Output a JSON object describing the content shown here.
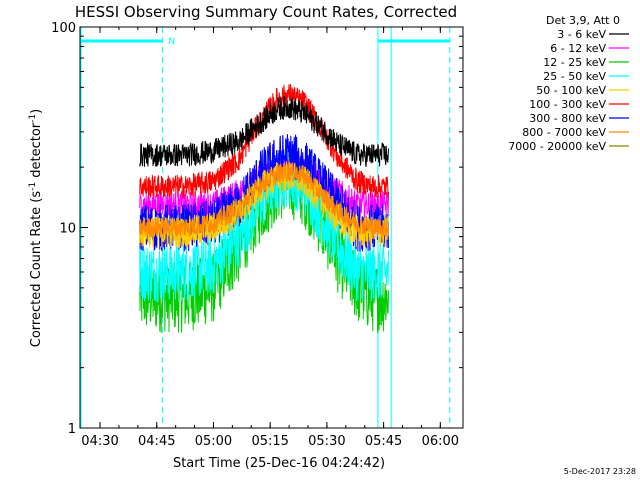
{
  "chart_data": {
    "type": "line",
    "title": "HESSI Observing Summary Count Rates, Corrected",
    "xlabel": "Start Time (25-Dec-16 04:24:42)",
    "ylabel_main": "Corrected Count Rate (s",
    "ylabel_sup1": "-1",
    "ylabel_mid": " detector",
    "ylabel_sup2": "-1",
    "ylabel_end": ")",
    "yscale": "log",
    "ylim": [
      1,
      100
    ],
    "xlim_minutes": [
      264.7,
      366
    ],
    "y_ticks": [
      {
        "value": 1,
        "label": "1"
      },
      {
        "value": 10,
        "label": "10"
      },
      {
        "value": 100,
        "label": "100"
      }
    ],
    "x_ticks": [
      {
        "minute": 270,
        "label": "04:30"
      },
      {
        "minute": 285,
        "label": "04:45"
      },
      {
        "minute": 300,
        "label": "05:00"
      },
      {
        "minute": 315,
        "label": "05:15"
      },
      {
        "minute": 330,
        "label": "05:30"
      },
      {
        "minute": 345,
        "label": "05:45"
      },
      {
        "minute": 360,
        "label": "06:00"
      }
    ],
    "legend_title": "Det 3,9, Att 0",
    "series": [
      {
        "name": "3 - 6 keV",
        "color": "#000000",
        "start": 280.5,
        "end": 346.3,
        "baseline": 23,
        "peak": 40,
        "jitter": 0.06,
        "x": [
          280.5,
          293,
          300,
          307,
          313,
          317,
          320,
          324,
          328,
          333,
          338,
          342,
          346.3
        ],
        "y": [
          23,
          23,
          24,
          27,
          34,
          39,
          40,
          37,
          32,
          26,
          23,
          23,
          23
        ]
      },
      {
        "name": "6 - 12 keV",
        "color": "#ff00ff",
        "start": 280.5,
        "end": 346.3,
        "baseline": 13,
        "peak": 21,
        "jitter": 0.07,
        "x": [
          280.5,
          293,
          300,
          307,
          313,
          317,
          320,
          324,
          328,
          333,
          338,
          342,
          346.3
        ],
        "y": [
          13,
          13,
          13,
          15,
          18,
          20,
          21,
          20,
          18,
          15,
          13,
          13,
          13
        ]
      },
      {
        "name": "12 - 25 keV",
        "color": "#00cc00",
        "start": 280.5,
        "end": 346.3,
        "baseline": 4.5,
        "peak": 17,
        "jitter": 0.18,
        "x": [
          280.5,
          293,
          300,
          307,
          313,
          317,
          320,
          324,
          328,
          333,
          338,
          342,
          346.3
        ],
        "y": [
          4.5,
          4.5,
          5,
          8,
          13,
          16,
          17,
          15,
          11,
          7,
          5,
          4.5,
          4.5
        ]
      },
      {
        "name": "25 - 50 keV",
        "color": "#00ffff",
        "start": 280.5,
        "end": 346.3,
        "baseline": 6,
        "peak": 18,
        "jitter": 0.15,
        "x": [
          280.5,
          293,
          300,
          307,
          313,
          317,
          320,
          324,
          328,
          333,
          338,
          342,
          346.3
        ],
        "y": [
          6,
          6,
          6.5,
          9,
          14,
          17,
          18,
          16,
          12,
          8,
          6,
          6,
          6
        ]
      },
      {
        "name": "50 - 100 keV",
        "color": "#ffcc00",
        "start": 280.5,
        "end": 346.3,
        "baseline": 9.5,
        "peak": 18,
        "jitter": 0.08,
        "x": [
          280.5,
          293,
          300,
          307,
          313,
          317,
          320,
          324,
          328,
          333,
          338,
          342,
          346.3
        ],
        "y": [
          9.5,
          9.5,
          10,
          12,
          16,
          18,
          18,
          17,
          14,
          11,
          9.5,
          9.5,
          9.5
        ]
      },
      {
        "name": "100 - 300 keV",
        "color": "#ff0000",
        "start": 280.5,
        "end": 346.3,
        "baseline": 16,
        "peak": 46,
        "jitter": 0.06,
        "x": [
          280.5,
          293,
          300,
          307,
          313,
          317,
          320,
          324,
          328,
          333,
          338,
          342,
          346.3
        ],
        "y": [
          16,
          16,
          17,
          22,
          35,
          44,
          46,
          42,
          32,
          22,
          17,
          16,
          16
        ]
      },
      {
        "name": "300 - 800 keV",
        "color": "#0000ff",
        "start": 280.5,
        "end": 346.3,
        "baseline": 10,
        "peak": 23,
        "jitter": 0.12,
        "x": [
          280.5,
          293,
          300,
          307,
          313,
          317,
          320,
          324,
          328,
          333,
          338,
          342,
          346.3
        ],
        "y": [
          10,
          10,
          10.5,
          13,
          19,
          22,
          23,
          21,
          17,
          13,
          10,
          10,
          10
        ]
      },
      {
        "name": "800 - 7000 keV",
        "color": "#ff8800",
        "start": 280.5,
        "end": 346.3,
        "baseline": 10,
        "peak": 19,
        "jitter": 0.05,
        "x": [
          280.5,
          293,
          300,
          307,
          313,
          317,
          320,
          324,
          328,
          333,
          338,
          342,
          346.3
        ],
        "y": [
          10,
          10,
          10.5,
          12.5,
          16.5,
          18.5,
          19,
          18,
          15,
          12,
          10.5,
          10,
          10
        ]
      },
      {
        "name": "7000 - 20000 keV",
        "color": "#888800",
        "start": 280.5,
        "end": 346.3,
        "baseline": 0,
        "peak": 0,
        "jitter": 0,
        "x": [],
        "y": []
      }
    ],
    "flags": [
      {
        "label": "N",
        "color": "#00ffff"
      }
    ],
    "timestamp": "5-Dec-2017 23:28"
  },
  "layout_hints": {
    "night_intervals_minutes": [
      [
        264.7,
        286.5
      ],
      [
        343.5,
        362.5
      ]
    ],
    "night_line_y": 85,
    "dashed_lines_minutes": [
      286.5,
      362.5
    ],
    "solid_lines_minutes": [
      343.5,
      347
    ]
  }
}
